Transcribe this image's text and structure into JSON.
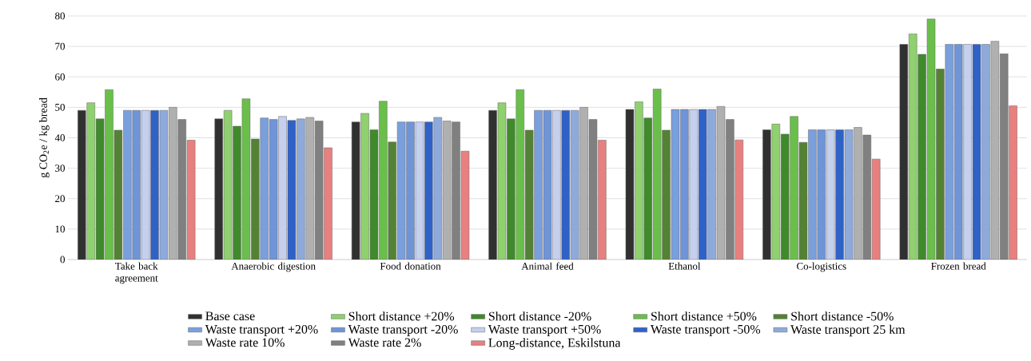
{
  "chart_data": {
    "type": "bar",
    "ylabel": "g CO$_{2}$e / kg bread",
    "categories": [
      "Take back agreement",
      "Anaerobic digestion",
      "Food donation",
      "Animal feed",
      "Ethanol",
      "Co-logistics",
      "Frozen bread"
    ],
    "series": [
      {
        "name": "Base case",
        "color": "#303030",
        "values": [
          49,
          46.2,
          45.2,
          49,
          49.3,
          42.6,
          70.7
        ]
      },
      {
        "name": "Short distance +20%",
        "color": "#8fd06f",
        "values": [
          51.5,
          49,
          48,
          51.5,
          51.8,
          44.5,
          74.1
        ]
      },
      {
        "name": "Short distance -20%",
        "color": "#3f8a2a",
        "values": [
          46.2,
          43.8,
          42.6,
          46.2,
          46.5,
          41.2,
          67.4
        ]
      },
      {
        "name": "Short distance +50%",
        "color": "#6abf4b",
        "values": [
          55.8,
          52.8,
          52,
          55.8,
          56,
          47,
          79
        ]
      },
      {
        "name": "Short distance -50%",
        "color": "#548235",
        "values": [
          42.5,
          39.6,
          38.6,
          42.5,
          42.5,
          38.5,
          62.6
        ]
      },
      {
        "name": "Waste transport +20%",
        "color": "#7a9fdd",
        "values": [
          49,
          46.5,
          45.2,
          49,
          49.3,
          42.6,
          70.7
        ]
      },
      {
        "name": "Waste transport -20%",
        "color": "#6f95d8",
        "values": [
          49,
          46,
          45.2,
          49,
          49.3,
          42.6,
          70.7
        ]
      },
      {
        "name": "Waste transport +50%",
        "color": "#c5d0ee",
        "values": [
          49,
          47,
          45.2,
          49,
          49.3,
          42.6,
          70.7
        ]
      },
      {
        "name": "Waste transport -50%",
        "color": "#2f62c8",
        "values": [
          49,
          45.7,
          45.2,
          49,
          49.3,
          42.6,
          70.7
        ]
      },
      {
        "name": "Waste transport 25 km",
        "color": "#8eaadb",
        "values": [
          49,
          46.2,
          46.7,
          49,
          49.3,
          42.6,
          70.7
        ]
      },
      {
        "name": "Waste rate 10%",
        "color": "#b0b0b0",
        "values": [
          50,
          46.7,
          45.5,
          50,
          50.3,
          43.4,
          71.7
        ]
      },
      {
        "name": "Waste rate 2%",
        "color": "#808080",
        "values": [
          46,
          45.5,
          45.2,
          46,
          46,
          40.9,
          67.6
        ]
      },
      {
        "name": "Long-distance, Eskilstuna",
        "color": "#e88080",
        "values": [
          39.2,
          36.7,
          35.6,
          39.2,
          39.3,
          33,
          50.5
        ]
      }
    ],
    "ylim": [
      0,
      80
    ],
    "yticks": [
      0,
      10,
      20,
      30,
      40,
      50,
      60,
      70,
      80
    ],
    "grid": "y",
    "legend": "bottom"
  }
}
